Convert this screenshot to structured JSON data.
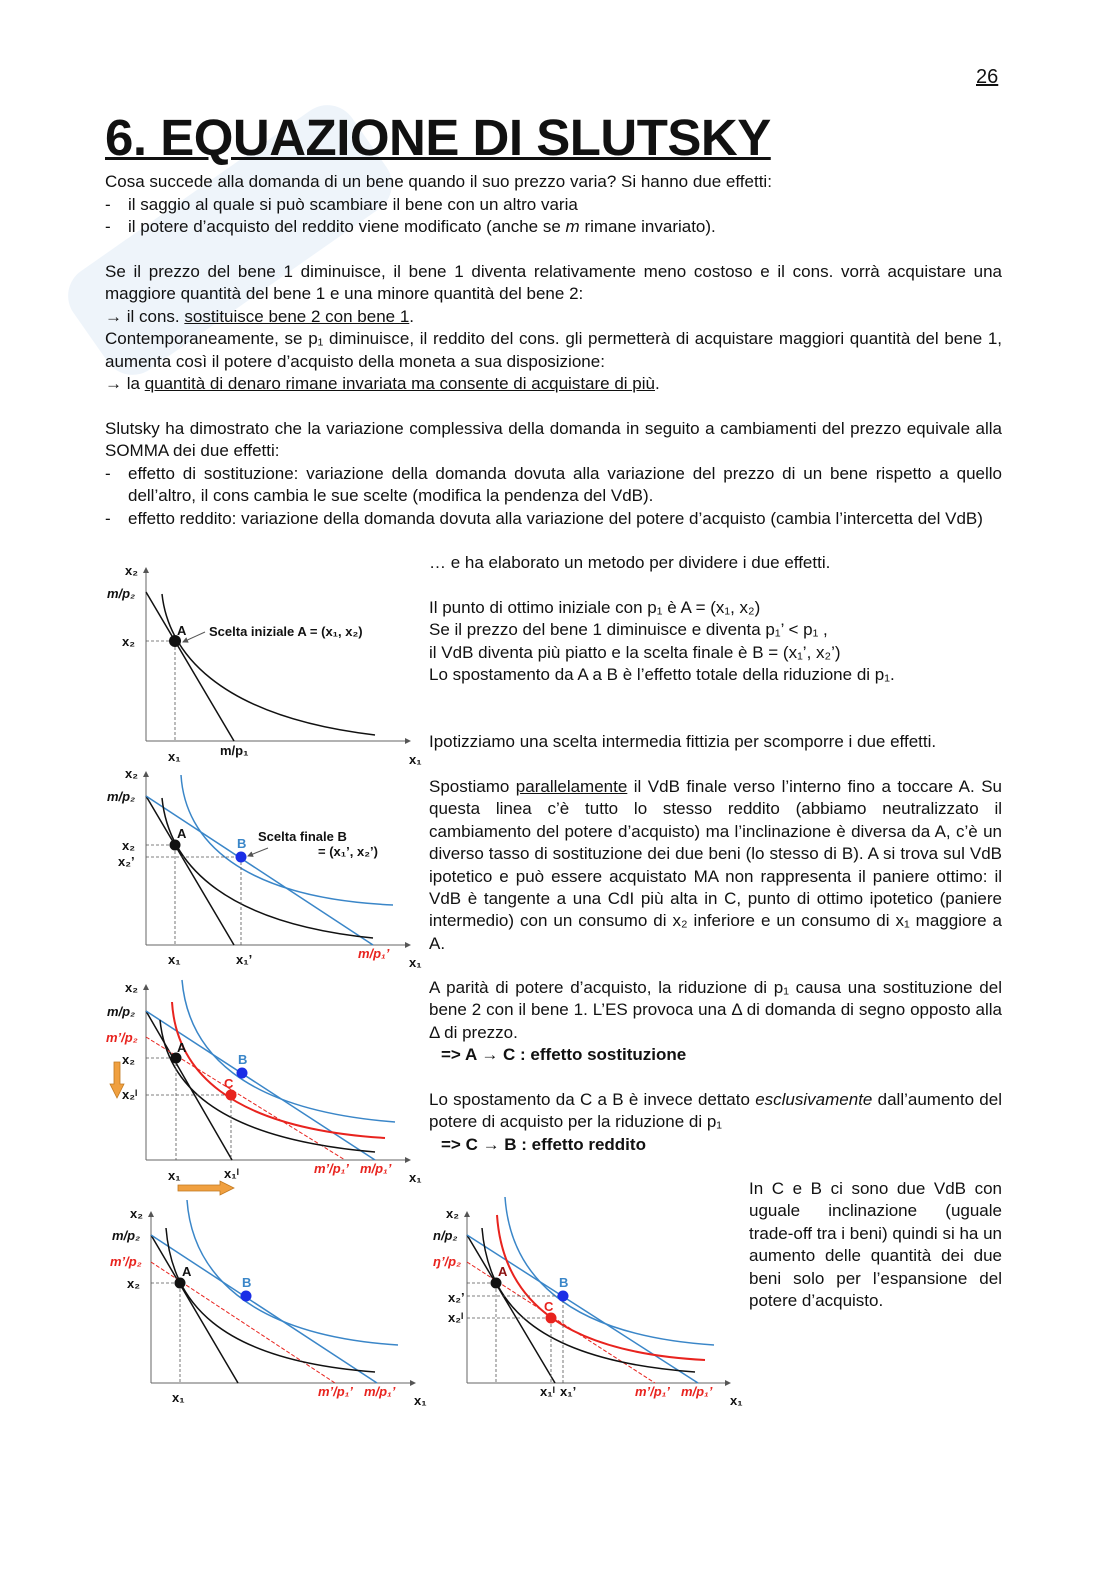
{
  "page_number": "26",
  "title": "6. EQUAZIONE DI SLUTSKY",
  "intro": {
    "question": "Cosa succede alla domanda di un bene quando il suo prezzo varia? Si hanno due effetti:",
    "bullets": [
      "il saggio al quale si può scambiare il bene con un altro varia",
      "il potere d’acquisto del reddito viene modificato (anche se ",
      "m",
      " rimane invariato)."
    ]
  },
  "para2": {
    "text1": "Se il prezzo del bene 1 diminuisce, il bene 1 diventa relativamente meno costoso e il cons. vorrà acquistare una maggiore quantità del bene 1 e una minore quantità del bene 2:",
    "arrow1_pre": "→ il cons. ",
    "arrow1_u": "sostituisce bene 2 con bene 1",
    "arrow1_post": ".",
    "text2": "Contemporaneamente, se p₁ diminuisce, il reddito del cons. gli permetterà di acquistare maggiori quantità del bene 1, aumenta così il potere d’acquisto della moneta a sua disposizione:",
    "arrow2_pre": "→ la ",
    "arrow2_u": "quantità di denaro rimane invariata ma consente di acquistare di più",
    "arrow2_post": "."
  },
  "para3": {
    "text": "Slutsky ha dimostrato che la variazione complessiva della domanda in seguito a cambiamenti del prezzo equivale alla SOMMA dei due effetti:",
    "bullets": [
      "effetto di sostituzione: variazione della domanda dovuta alla variazione del prezzo di un bene rispetto a quello dell’altro, il cons cambia le sue scelte (modifica la pendenza del VdB).",
      "effetto reddito: variazione della domanda dovuta alla variazione del potere d’acquisto (cambia l’intercetta del VdB)"
    ]
  },
  "right": {
    "r1": "… e ha elaborato un metodo per dividere i due effetti.",
    "r2": [
      "Il punto di ottimo iniziale con p₁ è A = (x₁, x₂)",
      "Se il prezzo del bene 1 diminuisce e diventa p₁’ < p₁ ,",
      "il VdB diventa più piatto e la scelta finale è B  = (x₁’, x₂’)",
      "Lo spostamento da A a B è l’effetto totale della riduzione di p₁."
    ],
    "r3": "Ipotizziamo una scelta intermedia fittizia per scomporre i due effetti.",
    "r4_pre": "Spostiamo ",
    "r4_u": "parallelamente",
    "r4_post": " il VdB finale verso l’interno fino a toccare A. Su questa linea c’è tutto lo stesso reddito (abbiamo neutralizzato il cambiamento del potere d’acquisto) ma l’inclinazione è diversa da A, c’è un diverso tasso di sostituzione dei due beni (lo stesso di B). A si trova sul VdB ipotetico e può essere acquistato MA non rappresenta il paniere ottimo: il VdB è tangente a una CdI più alta in C, punto di ottimo ipotetico (paniere intermedio) con un consumo di x₂ inferiore e un consumo di x₁ maggiore a A.",
    "r5": "A parità di potere d’acquisto, la riduzione di p₁ causa una sostituzione del bene 2 con il bene 1. L’ES provoca una Δ di domanda di segno opposto alla Δ di prezzo.",
    "r5_bold": "=>  A → C : effetto sostituzione",
    "r6_pre": "Lo spostamento da C a B è invece dettato ",
    "r6_i": "esclusivamente",
    "r6_post": " dall’aumento del potere di acquisto per la riduzione di p₁",
    "r6_bold": "=>  C → B : effetto reddito",
    "r7": "In C e B ci sono due VdB con uguale inclinazione (uguale trade-off tra i beni) quindi si ha un aumento delle quantità dei due beni solo per l’espansione del potere d’acquisto."
  },
  "diagrams": {
    "d1": {
      "y": "x₂",
      "x": "x₁",
      "mp2": "m/p₂",
      "x2": "x₂",
      "x1": "x₁",
      "mp1": "m/p₁",
      "A": "A",
      "caption": "Scelta iniziale  A = (x₁, x₂)"
    },
    "d2": {
      "y": "x₂",
      "x": "x₁",
      "mp2": "m/p₂",
      "x2": "x₂",
      "x2p": "x₂’",
      "x1": "x₁",
      "x1p": "x₁’",
      "mp1p": "m/p₁’",
      "A": "A",
      "B": "B",
      "caption1": "Scelta finale B",
      "caption2": "= (x₁’, x₂’)"
    },
    "d3": {
      "y": "x₂",
      "x": "x₁",
      "mp2": "m/p₂",
      "mpp2": "m’/p₂",
      "x2": "x₂",
      "x2i": "x₂ᴵ",
      "x1": "x₁",
      "x1i": "x₁ᴵ",
      "mpp1p": "m’/p₁’",
      "mp1p": "m/p₁’",
      "A": "A",
      "B": "B",
      "C": "C"
    },
    "d4": {
      "y": "x₂",
      "x": "x₁",
      "mp2": "m/p₂",
      "mpp2": "m’/p₂",
      "x2": "x₂",
      "x1": "x₁",
      "mpp1p": "m’/p₁’",
      "mp1p": "m/p₁’",
      "A": "A",
      "B": "B"
    },
    "d5": {
      "y": "x₂",
      "x": "x₁",
      "mp2": "n/p₂",
      "mpp2": "ŋ’/p₂",
      "x2p": "x₂’",
      "x2i": "x₂ᴵ",
      "x1i": "x₁ᴵ",
      "x1p": "x₁’",
      "mpp1p": "m’/p₁’",
      "mp1p": "m/p₁’",
      "A": "A",
      "B": "B",
      "C": "C"
    }
  },
  "colors": {
    "black": "#111111",
    "blue": "#3a86c8",
    "point_blue": "#1a2ee6",
    "red": "#e8231e",
    "orange": "#f0a040"
  }
}
